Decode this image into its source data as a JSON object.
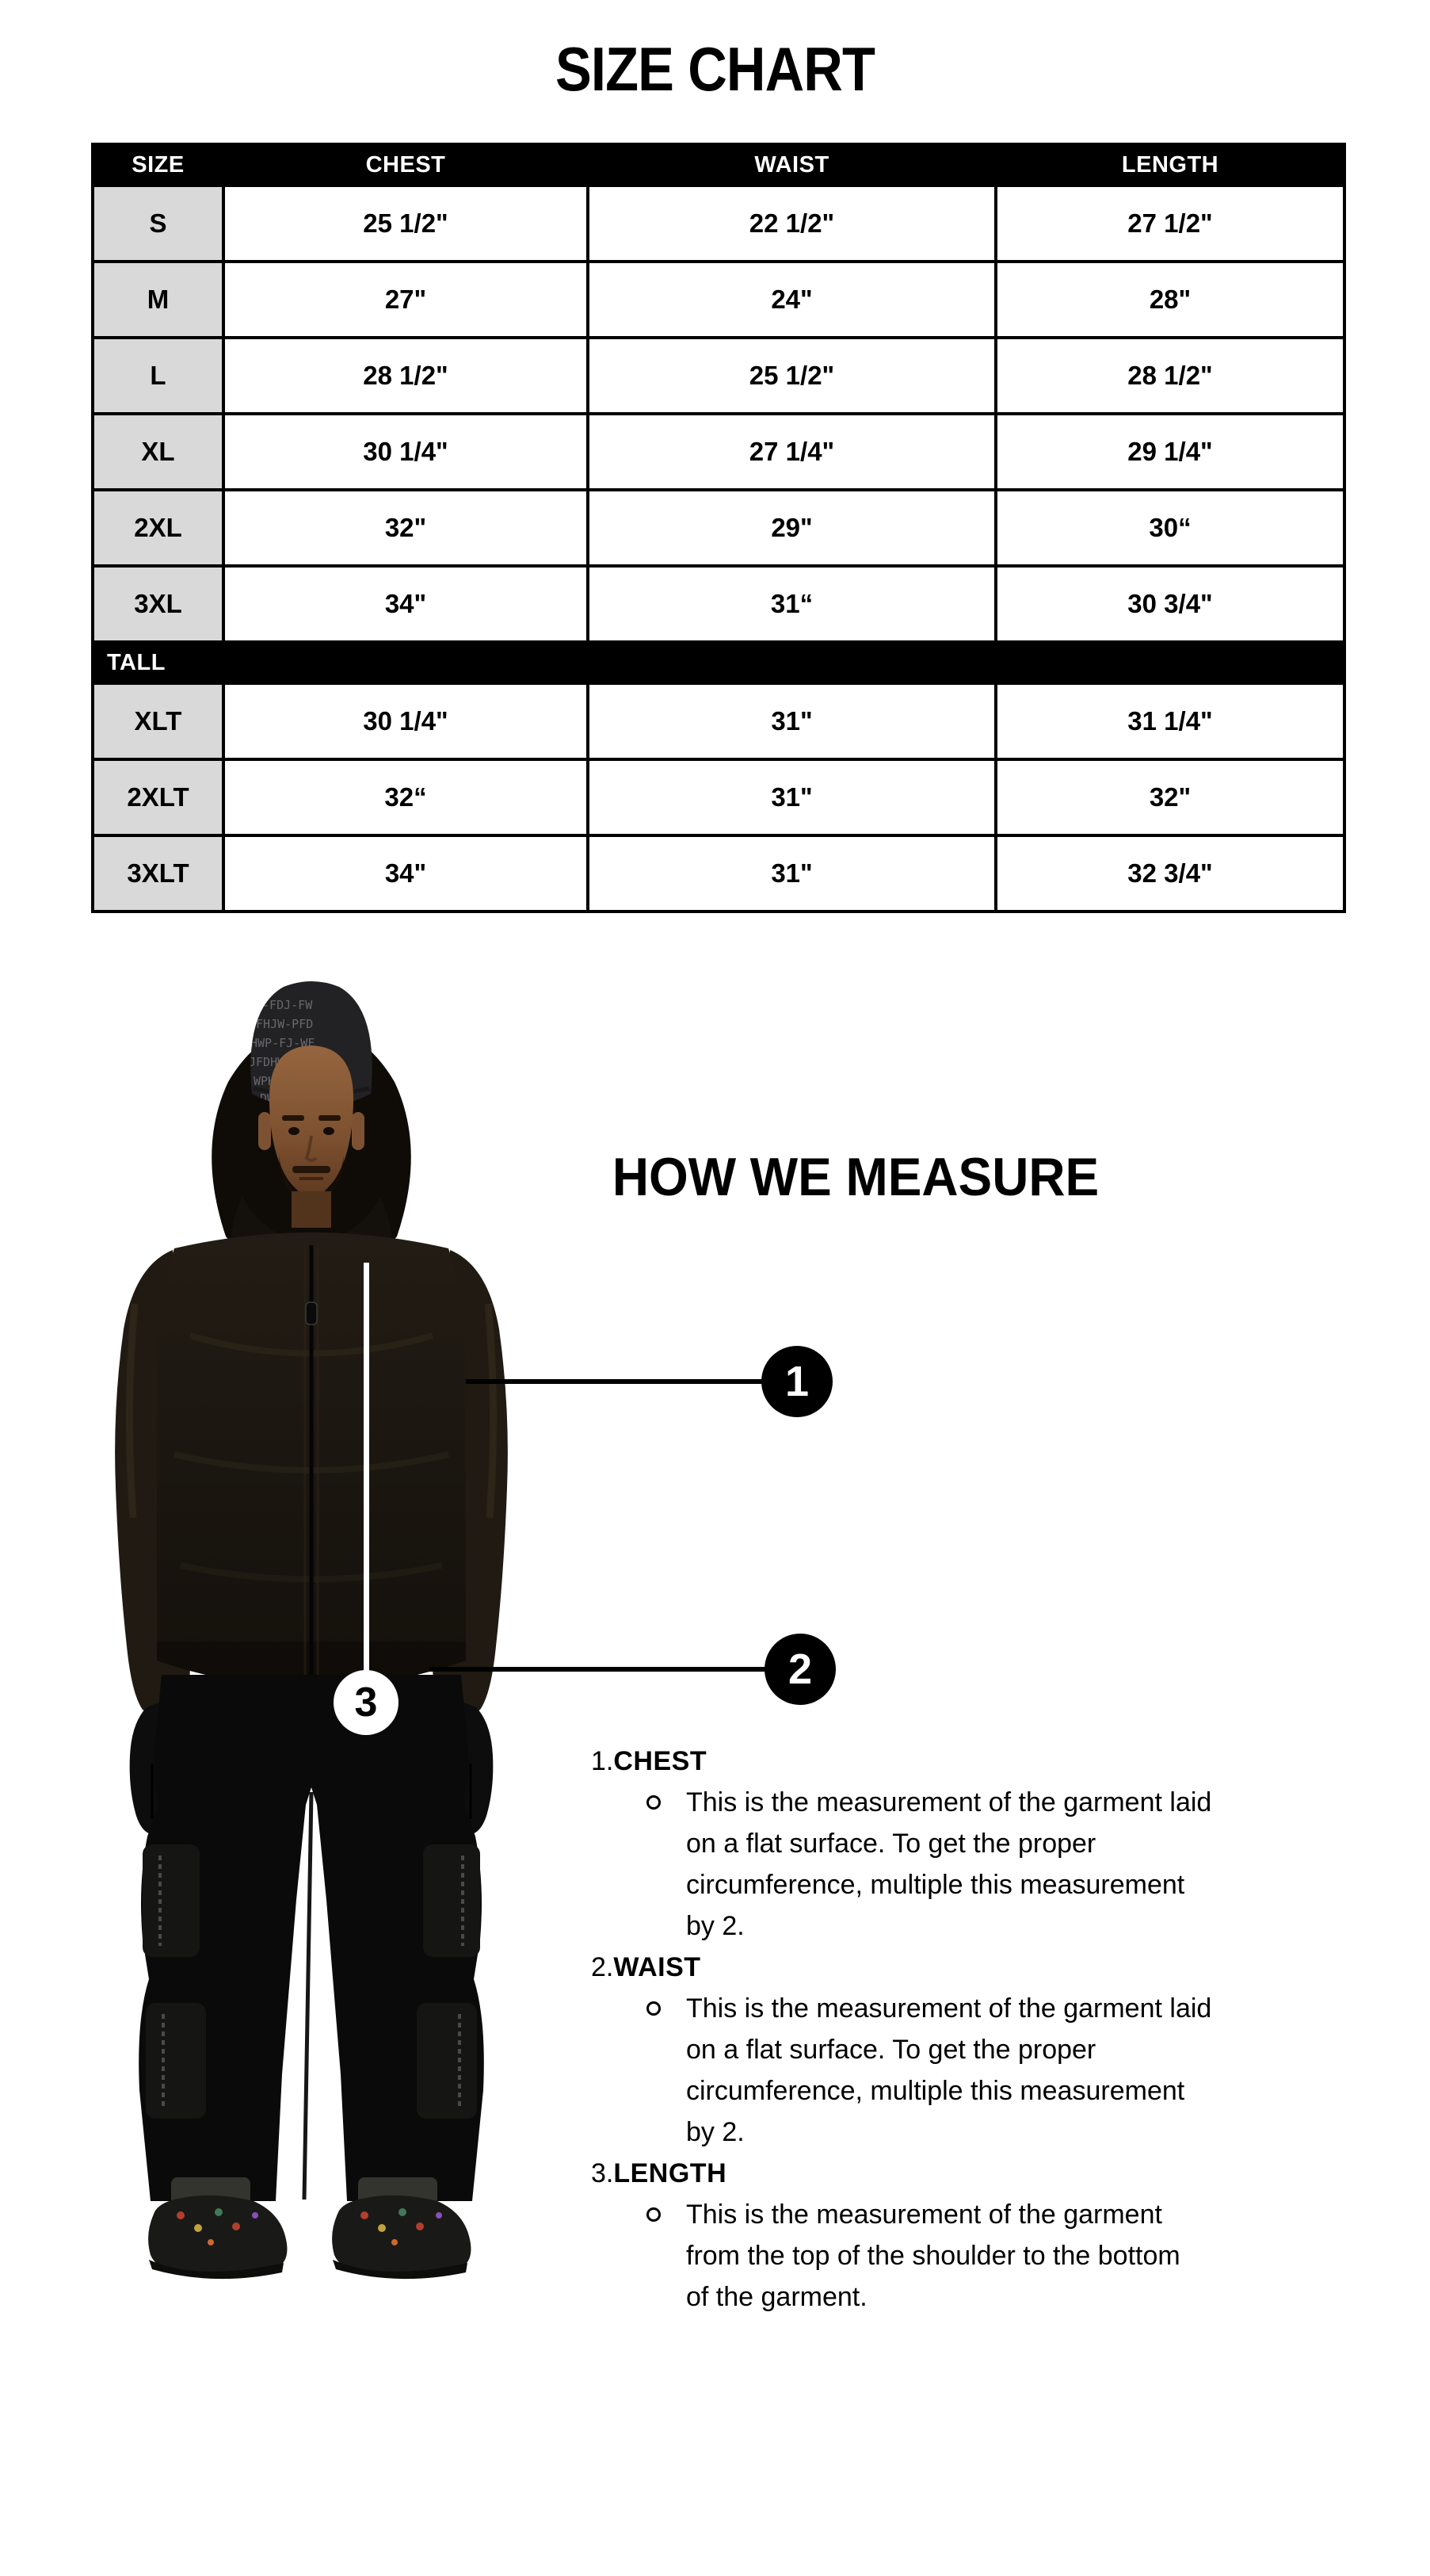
{
  "page_title": "SIZE CHART",
  "colors": {
    "table_header_bg": "#000000",
    "table_header_text": "#ffffff",
    "size_column_bg": "#d9d9d9",
    "table_border": "#000000",
    "callout_circle_bg": "#000000",
    "callout_circle_text": "#ffffff",
    "callout3_circle_bg": "#ffffff",
    "callout3_circle_text": "#000000",
    "measure_line_white": "#ffffff",
    "measure_line_black": "#000000"
  },
  "size_chart": {
    "table": {
      "headers": [
        "SIZE",
        "CHEST",
        "WAIST",
        "LENGTH"
      ],
      "rows": [
        {
          "size": "S",
          "chest": "25 1/2\"",
          "waist": "22 1/2\"",
          "length": "27 1/2\""
        },
        {
          "size": "M",
          "chest": "27\"",
          "waist": "24\"",
          "length": "28\""
        },
        {
          "size": "L",
          "chest": "28 1/2\"",
          "waist": "25 1/2\"",
          "length": "28 1/2\""
        },
        {
          "size": "XL",
          "chest": "30 1/4\"",
          "waist": "27 1/4\"",
          "length": "29 1/4\""
        },
        {
          "size": "2XL",
          "chest": "32\"",
          "waist": "29\"",
          "length": "30“"
        },
        {
          "size": "3XL",
          "chest": "34\"",
          "waist": "31“",
          "length": "30 3/4\""
        }
      ],
      "tall_section_label": "TALL",
      "tall_rows": [
        {
          "size": "XLT",
          "chest": "30 1/4\"",
          "waist": "31\"",
          "length": "31 1/4\""
        },
        {
          "size": "2XLT",
          "chest": "32“",
          "waist": "31\"",
          "length": "32\""
        },
        {
          "size": "3XLT",
          "chest": "34\"",
          "waist": "31\"",
          "length": "32 3/4\""
        }
      ]
    }
  },
  "measure_section": {
    "title": "HOW WE MEASURE",
    "callouts": [
      {
        "number": "1"
      },
      {
        "number": "2"
      },
      {
        "number": "3"
      }
    ],
    "items": [
      {
        "number": "1.",
        "label": "CHEST",
        "lines": [
          "This is the measurement of the garment laid",
          "on a flat surface. To get the proper",
          "circumference, multiple this measurement",
          "by 2."
        ]
      },
      {
        "number": "2.",
        "label": "WAIST",
        "lines": [
          "This is the measurement of the garment laid",
          "on a flat surface. To get the proper",
          "circumference, multiple this measurement",
          "by 2."
        ]
      },
      {
        "number": "3.",
        "label": "LENGTH",
        "lines": [
          "This is the measurement of the garment",
          "from the top of the shoulder to the bottom",
          "of the garment."
        ]
      }
    ]
  }
}
